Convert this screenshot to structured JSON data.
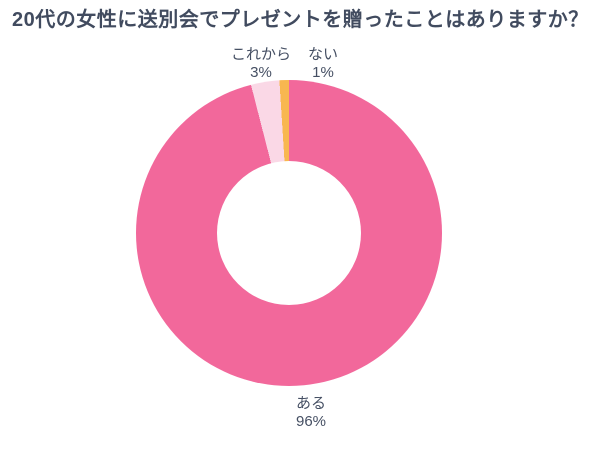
{
  "title": {
    "text": "20代の女性に送別会でプレゼントを贈ったことはありますか？",
    "color": "#414b5f"
  },
  "chart_data": {
    "type": "pie",
    "subtype": "donut",
    "title": "20代の女性に送別会でプレゼントを贈ったことはありますか？",
    "categories": [
      "ある",
      "これから",
      "ない"
    ],
    "values": [
      96,
      3,
      1
    ],
    "unit": "%",
    "colors": [
      "#f2689b",
      "#fad8e6",
      "#f8b750"
    ],
    "start_angle_deg": 0,
    "direction": "clockwise",
    "inner_radius_ratio": 0.47,
    "background": "#ffffff",
    "legend": "none",
    "label_color": "#454f63",
    "data_labels": [
      {
        "name": "ある",
        "value": "96%",
        "position": "bottom"
      },
      {
        "name": "これから",
        "value": "3%",
        "position": "top-left"
      },
      {
        "name": "ない",
        "value": "1%",
        "position": "top"
      }
    ]
  },
  "callouts": [
    {
      "name": "これから",
      "value": "3%"
    },
    {
      "name": "ない",
      "value": "1%"
    },
    {
      "name": "ある",
      "value": "96%"
    }
  ]
}
